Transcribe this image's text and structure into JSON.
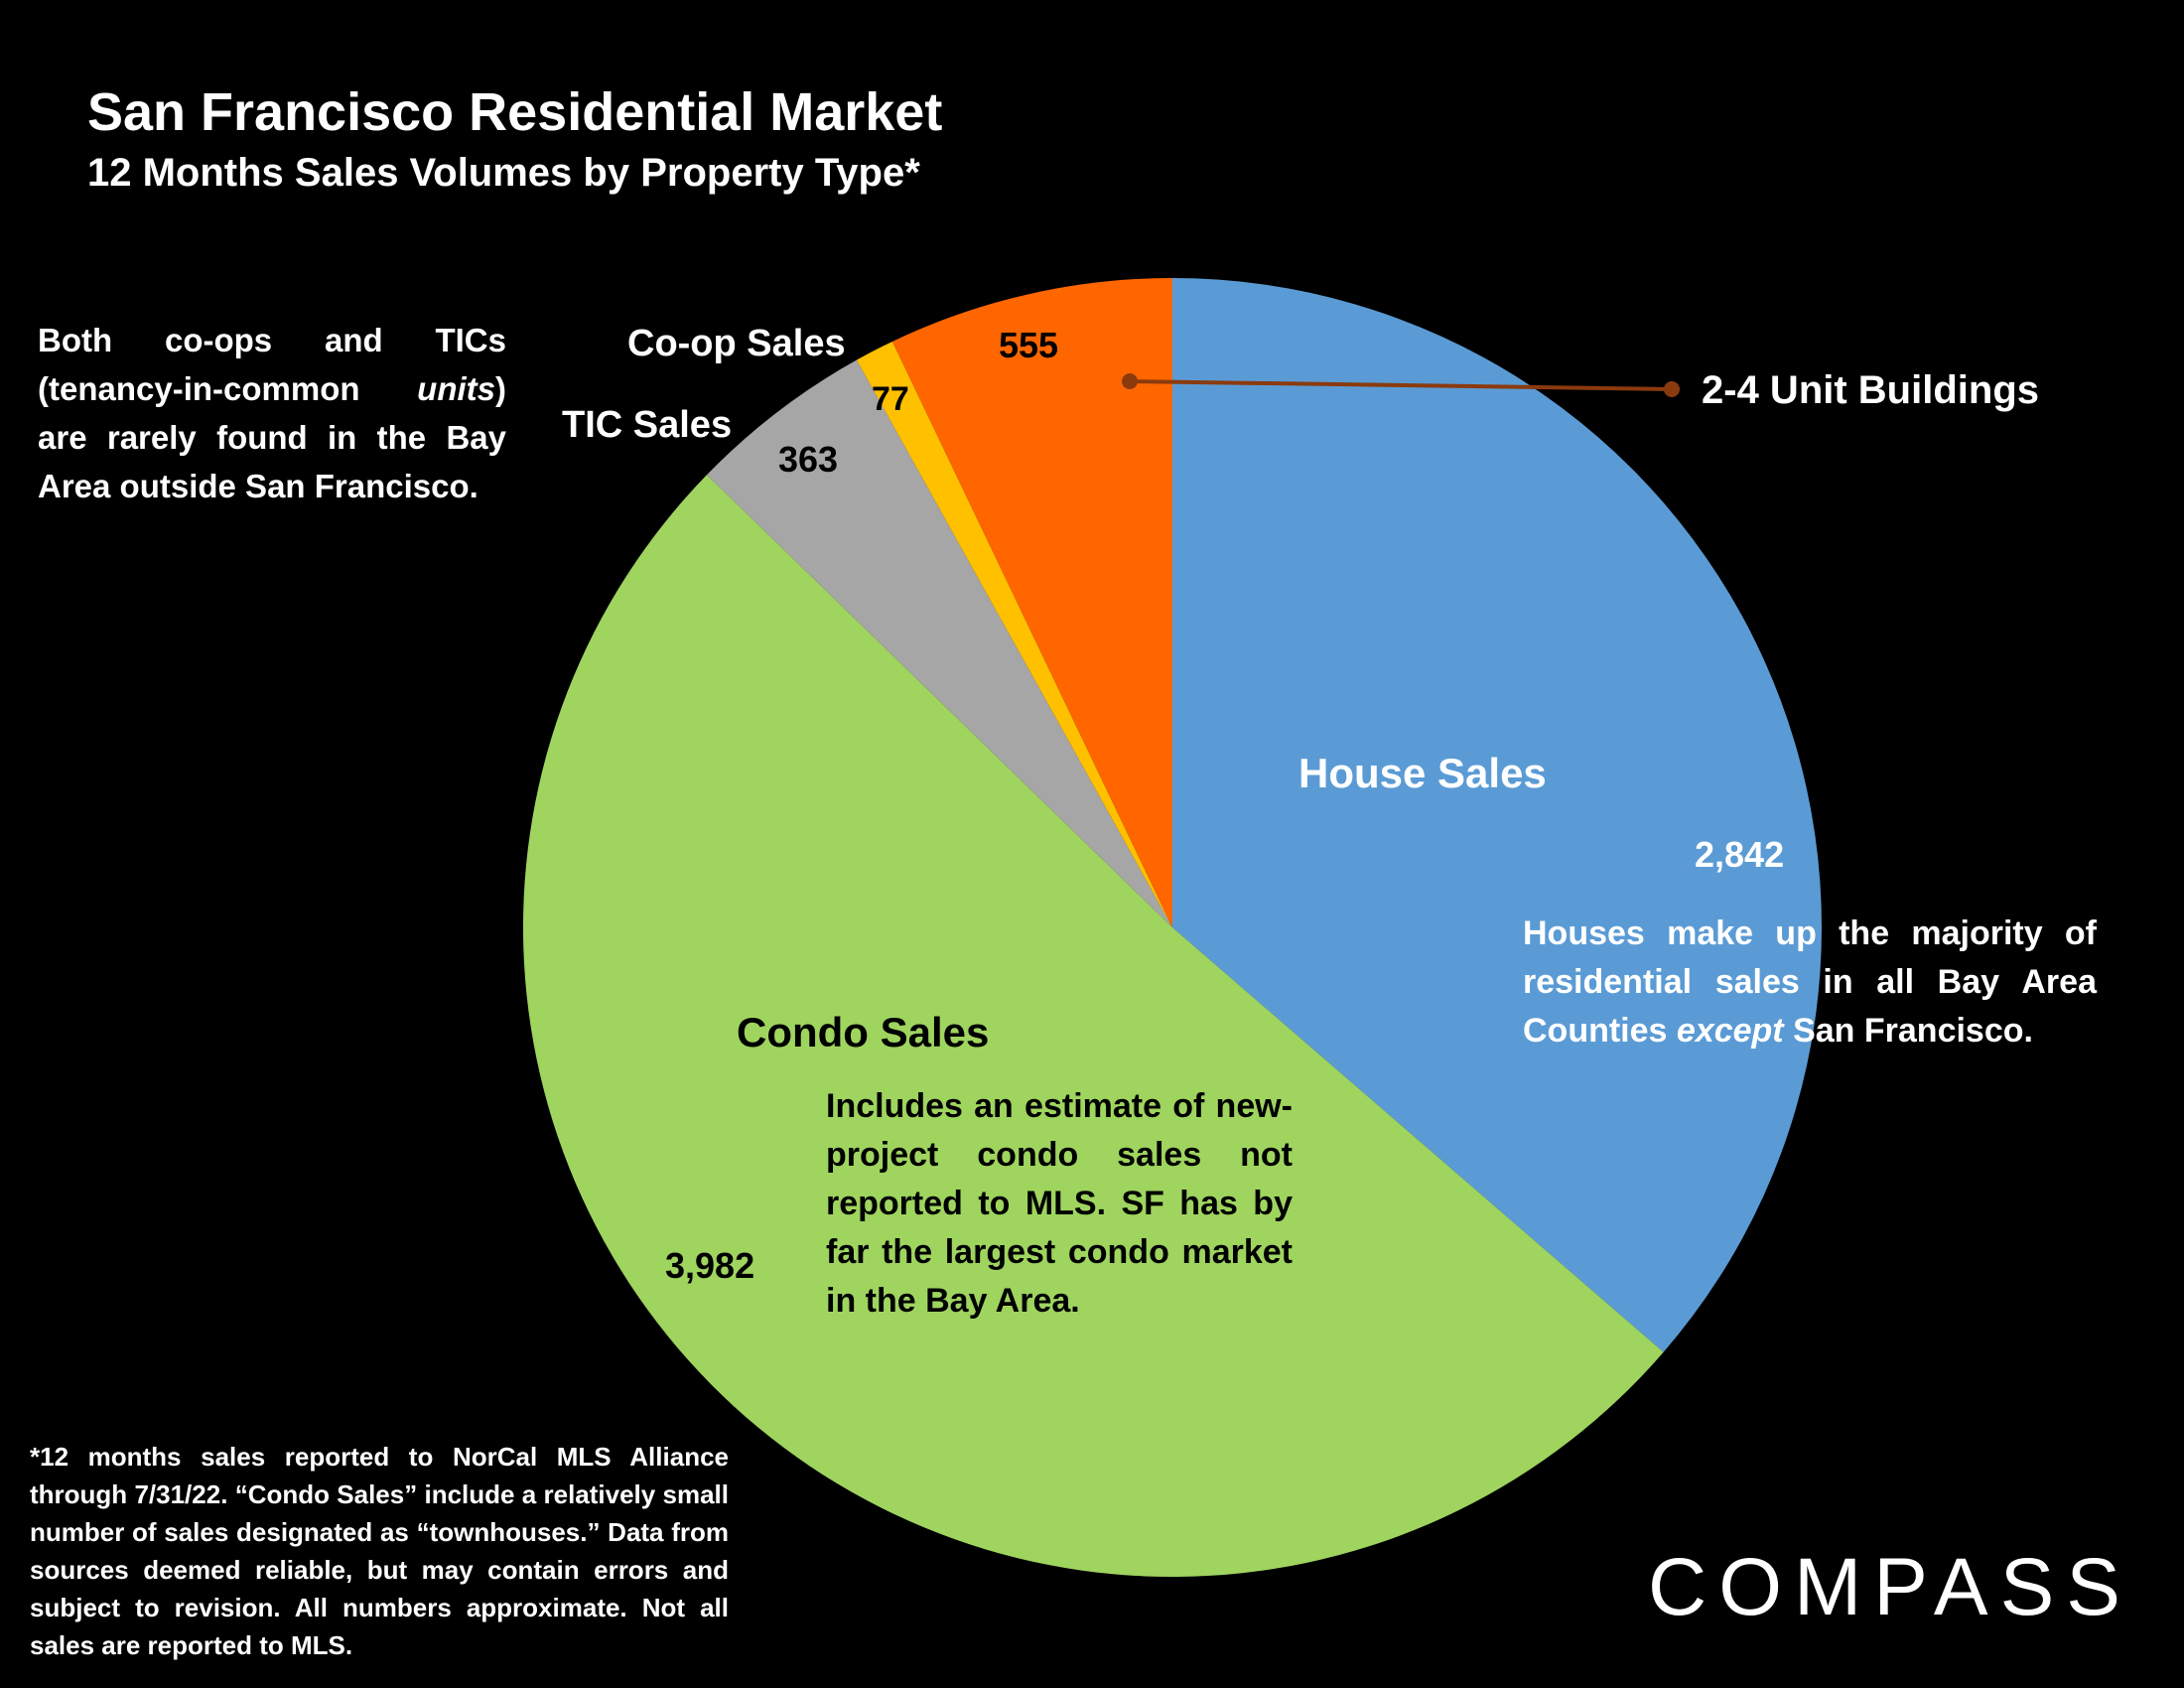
{
  "header": {
    "title": "San Francisco Residential Market",
    "subtitle": "12 Months Sales Volumes by Property Type*"
  },
  "notes": {
    "left_a": "Both co-ops and TICs (tenancy-in-common ",
    "left_em": "units",
    "left_b": ") are rarely found in the Bay Area outside San Francisco.",
    "house_a": "Houses make up the majority of residential sales in all Bay Area Counties ",
    "house_em": "except",
    "house_b": " San Francisco.",
    "condo": "Includes an estimate of new-project condo sales not reported to MLS. SF has by far the largest condo market in the Bay Area.",
    "footnote": "*12 months sales reported to NorCal MLS Alliance through 7/31/22. “Condo Sales” include a relatively small number of sales designated as “townhouses.” Data from sources deemed reliable, but may contain errors and subject to revision. All numbers approximate. Not all sales are reported to MLS."
  },
  "logo": {
    "text": "COMPASS"
  },
  "chart_data": {
    "type": "pie",
    "title": "San Francisco Residential Market",
    "subtitle": "12 Months Sales Volumes by Property Type*",
    "slices": [
      {
        "label": "House Sales",
        "value": 2842,
        "value_label": "2,842",
        "color": "#5b9bd5"
      },
      {
        "label": "Condo Sales",
        "value": 3982,
        "value_label": "3,982",
        "color": "#9fd45f"
      },
      {
        "label": "TIC Sales",
        "value": 363,
        "value_label": "363",
        "color": "#a6a6a6"
      },
      {
        "label": "Co-op Sales",
        "value": 77,
        "value_label": "77",
        "color": "#ffc000"
      },
      {
        "label": "2-4 Unit Buildings",
        "value": 555,
        "value_label": "555",
        "color": "#ff6600"
      }
    ],
    "start_angle": "12 o'clock",
    "direction": "clockwise",
    "legend": "none",
    "leader_line_color": "#8b3a0e"
  }
}
